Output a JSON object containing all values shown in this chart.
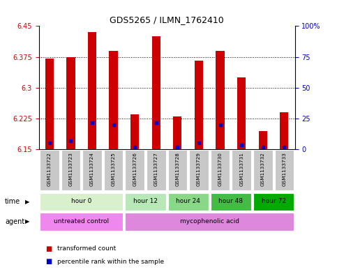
{
  "title": "GDS5265 / ILMN_1762410",
  "samples": [
    "GSM1133722",
    "GSM1133723",
    "GSM1133724",
    "GSM1133725",
    "GSM1133726",
    "GSM1133727",
    "GSM1133728",
    "GSM1133729",
    "GSM1133730",
    "GSM1133731",
    "GSM1133732",
    "GSM1133733"
  ],
  "bar_tops": [
    6.37,
    6.375,
    6.435,
    6.39,
    6.235,
    6.425,
    6.23,
    6.365,
    6.39,
    6.325,
    6.195,
    6.24
  ],
  "bar_bottom": 6.15,
  "blue_values": [
    6.165,
    6.17,
    6.215,
    6.21,
    6.155,
    6.215,
    6.155,
    6.165,
    6.21,
    6.16,
    6.155,
    6.155
  ],
  "ylim_left": [
    6.15,
    6.45
  ],
  "ylim_right": [
    0,
    100
  ],
  "yticks_left": [
    6.15,
    6.225,
    6.3,
    6.375,
    6.45
  ],
  "yticks_right": [
    0,
    25,
    50,
    75,
    100
  ],
  "time_groups": [
    {
      "label": "hour 0",
      "start": 0,
      "end": 3,
      "color": "#d8f0cc"
    },
    {
      "label": "hour 12",
      "start": 4,
      "end": 5,
      "color": "#b8e8b8"
    },
    {
      "label": "hour 24",
      "start": 6,
      "end": 7,
      "color": "#88d888"
    },
    {
      "label": "hour 48",
      "start": 8,
      "end": 9,
      "color": "#44bb44"
    },
    {
      "label": "hour 72",
      "start": 10,
      "end": 11,
      "color": "#00aa00"
    }
  ],
  "agent_groups": [
    {
      "label": "untreated control",
      "start": 0,
      "end": 3,
      "color": "#ee88ee"
    },
    {
      "label": "mycophenolic acid",
      "start": 4,
      "end": 11,
      "color": "#dd88dd"
    }
  ],
  "bar_color": "#cc0000",
  "blue_color": "#0000cc",
  "sample_bg": "#c8c8c8",
  "left_axis_color": "#cc0000",
  "right_axis_color": "#0000cc"
}
